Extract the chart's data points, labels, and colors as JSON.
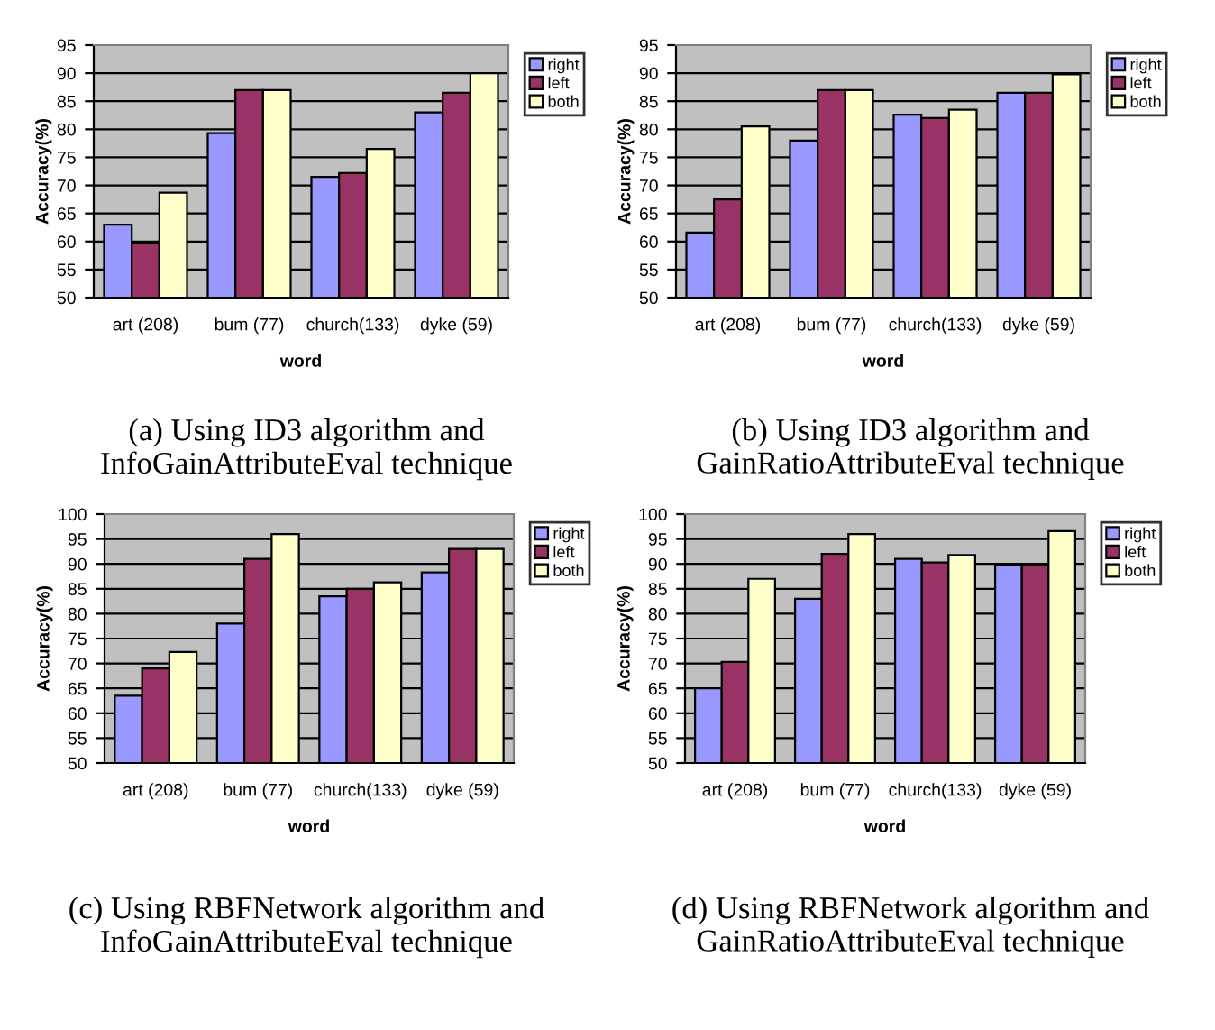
{
  "chart_data": [
    {
      "type": "bar",
      "xlabel": "word",
      "ylabel": "Accuracy(%)",
      "categories": [
        "art (208)",
        "bum (77)",
        "church(133)",
        "dyke (59)"
      ],
      "series": [
        {
          "name": "right",
          "color": "#9999ff",
          "values": [
            63,
            79.3,
            71.5,
            83
          ]
        },
        {
          "name": "left",
          "color": "#993366",
          "values": [
            59.7,
            87,
            72.2,
            86.5
          ]
        },
        {
          "name": "both",
          "color": "#ffffcc",
          "values": [
            68.7,
            87,
            76.5,
            90
          ]
        }
      ],
      "ylim": [
        50,
        95
      ],
      "yticks": [
        50,
        55,
        60,
        65,
        70,
        75,
        80,
        85,
        90,
        95
      ],
      "grid": "y",
      "legend": "top right",
      "annotations": [
        "(a) Using ID3 algorithm and InfoGainAttributeEval technique"
      ]
    },
    {
      "type": "bar",
      "xlabel": "word",
      "ylabel": "Accuracy(%)",
      "categories": [
        "art (208)",
        "bum (77)",
        "church(133)",
        "dyke (59)"
      ],
      "series": [
        {
          "name": "right",
          "color": "#9999ff",
          "values": [
            61.6,
            78,
            82.6,
            86.5
          ]
        },
        {
          "name": "left",
          "color": "#993366",
          "values": [
            67.5,
            87,
            82,
            86.5
          ]
        },
        {
          "name": "both",
          "color": "#ffffcc",
          "values": [
            80.5,
            87,
            83.5,
            89.8
          ]
        }
      ],
      "ylim": [
        50,
        95
      ],
      "yticks": [
        50,
        55,
        60,
        65,
        70,
        75,
        80,
        85,
        90,
        95
      ],
      "grid": "y",
      "legend": "top right",
      "annotations": [
        "(b) Using ID3 algorithm and GainRatioAttributeEval technique"
      ]
    },
    {
      "type": "bar",
      "xlabel": "word",
      "ylabel": "Accuracy(%)",
      "categories": [
        "art (208)",
        "bum (77)",
        "church(133)",
        "dyke (59)"
      ],
      "series": [
        {
          "name": "right",
          "color": "#9999ff",
          "values": [
            63.5,
            78,
            83.5,
            88.3
          ]
        },
        {
          "name": "left",
          "color": "#993366",
          "values": [
            69,
            91,
            85,
            93
          ]
        },
        {
          "name": "both",
          "color": "#ffffcc",
          "values": [
            72.3,
            96,
            86.3,
            93
          ]
        }
      ],
      "ylim": [
        50,
        100
      ],
      "yticks": [
        50,
        55,
        60,
        65,
        70,
        75,
        80,
        85,
        90,
        95,
        100
      ],
      "grid": "y",
      "legend": "top right",
      "annotations": [
        "(c) Using RBFNetwork algorithm and InfoGainAttributeEval technique"
      ]
    },
    {
      "type": "bar",
      "xlabel": "word",
      "ylabel": "Accuracy(%)",
      "categories": [
        "art (208)",
        "bum (77)",
        "church(133)",
        "dyke (59)"
      ],
      "series": [
        {
          "name": "right",
          "color": "#9999ff",
          "values": [
            65,
            83,
            91,
            89.7
          ]
        },
        {
          "name": "left",
          "color": "#993366",
          "values": [
            70.3,
            92,
            90.3,
            89.7
          ]
        },
        {
          "name": "both",
          "color": "#ffffcc",
          "values": [
            87,
            96,
            91.8,
            96.6
          ]
        }
      ],
      "ylim": [
        50,
        100
      ],
      "yticks": [
        50,
        55,
        60,
        65,
        70,
        75,
        80,
        85,
        90,
        95,
        100
      ],
      "grid": "y",
      "legend": "top right",
      "annotations": [
        "(d) Using RBFNetwork algorithm and GainRatioAttributeEval technique"
      ]
    }
  ]
}
